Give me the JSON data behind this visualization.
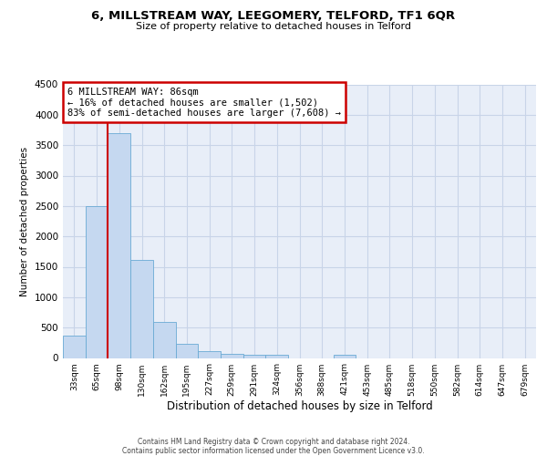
{
  "title1": "6, MILLSTREAM WAY, LEEGOMERY, TELFORD, TF1 6QR",
  "title2": "Size of property relative to detached houses in Telford",
  "xlabel": "Distribution of detached houses by size in Telford",
  "ylabel": "Number of detached properties",
  "categories": [
    "33sqm",
    "65sqm",
    "98sqm",
    "130sqm",
    "162sqm",
    "195sqm",
    "227sqm",
    "259sqm",
    "291sqm",
    "324sqm",
    "356sqm",
    "388sqm",
    "421sqm",
    "453sqm",
    "485sqm",
    "518sqm",
    "550sqm",
    "582sqm",
    "614sqm",
    "647sqm",
    "679sqm"
  ],
  "values": [
    370,
    2500,
    3700,
    1620,
    600,
    240,
    110,
    75,
    55,
    50,
    0,
    0,
    60,
    0,
    0,
    0,
    0,
    0,
    0,
    0,
    0
  ],
  "bar_color": "#c5d8f0",
  "bar_edge_color": "#6aaad4",
  "annotation_line1": "6 MILLSTREAM WAY: 86sqm",
  "annotation_line2": "← 16% of detached houses are smaller (1,502)",
  "annotation_line3": "83% of semi-detached houses are larger (7,608) →",
  "annotation_box_edge_color": "#cc0000",
  "vline_x": 1.5,
  "vline_color": "#cc0000",
  "ylim_max": 4500,
  "yticks": [
    0,
    500,
    1000,
    1500,
    2000,
    2500,
    3000,
    3500,
    4000,
    4500
  ],
  "footer_text": "Contains HM Land Registry data © Crown copyright and database right 2024.\nContains public sector information licensed under the Open Government Licence v3.0.",
  "grid_color": "#c8d4e8",
  "background_color": "#e8eef8"
}
